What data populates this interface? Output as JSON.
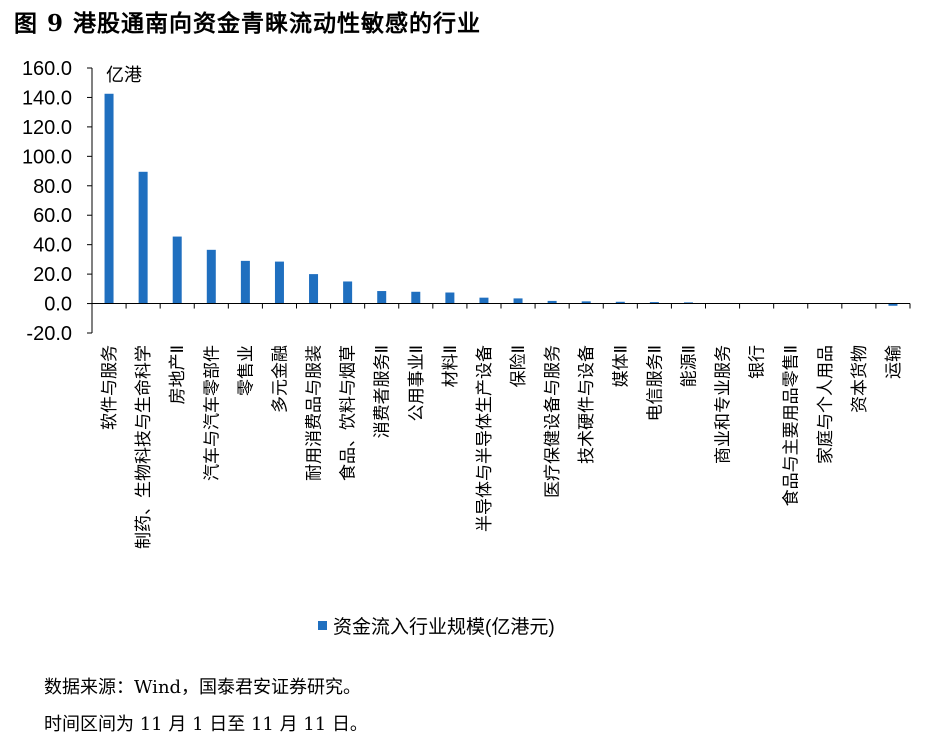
{
  "figure_title": "图 9 港股通南向资金青睐流动性敏感的行业",
  "source_line": "数据来源：Wind，国泰君安证券研究。",
  "note_line": "时间区间为 11 月 1 日至 11 月 11 日。",
  "colors": {
    "bar": "#1f6fbf",
    "axis": "#000000"
  },
  "chart_data": {
    "type": "bar",
    "unit_label": "亿港",
    "legend_label": "资金流入行业规模(亿港元)",
    "legend_position": "bottom",
    "grid": false,
    "ylim": [
      -20,
      160
    ],
    "y_ticks": [
      "160.0",
      "140.0",
      "120.0",
      "100.0",
      "80.0",
      "60.0",
      "40.0",
      "20.0",
      "0.0",
      "-20.0"
    ],
    "categories": [
      "软件与服务",
      "制药、生物科技与生命科学",
      "房地产Ⅱ",
      "汽车与汽车零部件",
      "零售业",
      "多元金融",
      "耐用消费品与服装",
      "食品、饮料与烟草",
      "消费者服务Ⅱ",
      "公用事业Ⅱ",
      "材料Ⅱ",
      "半导体与半导体生产设备",
      "保险Ⅱ",
      "医疗保健设备与服务",
      "技术硬件与设备",
      "媒体Ⅱ",
      "电信服务Ⅱ",
      "能源Ⅱ",
      "商业和专业服务",
      "银行",
      "食品与主要用品零售Ⅱ",
      "家庭与个人用品",
      "资本货物",
      "运输"
    ],
    "series": [
      {
        "name": "资金流入行业规模(亿港元)",
        "values": [
          142.5,
          89.5,
          45.5,
          36.5,
          29.0,
          28.5,
          20.0,
          15.0,
          8.5,
          8.0,
          7.5,
          4.0,
          3.5,
          1.8,
          1.5,
          1.2,
          1.0,
          0.8,
          0.3,
          0.2,
          0.2,
          0.1,
          0.1,
          -1.5
        ]
      }
    ]
  }
}
